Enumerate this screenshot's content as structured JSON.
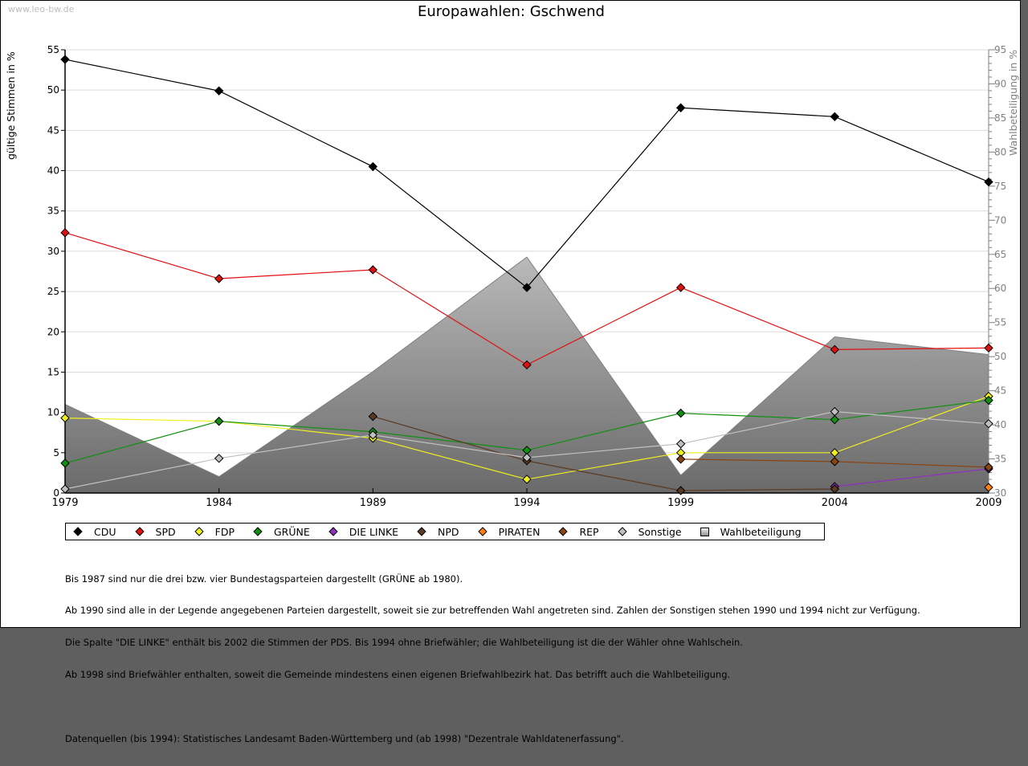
{
  "watermark": "www.leo-bw.de",
  "chart_data": {
    "type": "line",
    "title": "Europawahlen: Gschwend",
    "xlabel": "",
    "ylabel": "gültige Stimmen in %",
    "ylabel_right": "Wahlbeteiligung in %",
    "x": [
      1979,
      1984,
      1989,
      1994,
      1999,
      2004,
      2009
    ],
    "x_tick_labels": [
      "1979",
      "1984",
      "1989",
      "1994",
      "1999",
      "2004",
      "2009"
    ],
    "ylim": [
      0,
      55
    ],
    "y_ticks": [
      0,
      5,
      10,
      15,
      20,
      25,
      30,
      35,
      40,
      45,
      50,
      55
    ],
    "ylim_right": [
      30,
      95
    ],
    "y_ticks_right": [
      30,
      35,
      40,
      45,
      50,
      55,
      60,
      65,
      70,
      75,
      80,
      85,
      90,
      95
    ],
    "grid": true,
    "legend_position": "bottom",
    "series": [
      {
        "name": "CDU",
        "color": "#000000",
        "values": [
          53.8,
          49.9,
          40.5,
          25.5,
          47.8,
          46.7,
          38.6
        ]
      },
      {
        "name": "SPD",
        "color": "#e01010",
        "values": [
          32.3,
          26.6,
          27.7,
          15.9,
          25.5,
          17.8,
          18.0
        ]
      },
      {
        "name": "FDP",
        "color": "#f0f020",
        "values": [
          9.3,
          8.9,
          6.8,
          1.7,
          5.0,
          5.0,
          12.0
        ]
      },
      {
        "name": "GRÜNE",
        "color": "#109010",
        "values": [
          3.7,
          8.9,
          7.6,
          5.3,
          9.9,
          9.1,
          11.5
        ]
      },
      {
        "name": "DIE LINKE",
        "color": "#9030c0",
        "values": [
          null,
          null,
          null,
          null,
          null,
          0.8,
          3.0
        ]
      },
      {
        "name": "NPD",
        "color": "#5a3a22",
        "values": [
          null,
          null,
          9.5,
          4.0,
          0.3,
          0.5,
          null
        ]
      },
      {
        "name": "PIRATEN",
        "color": "#ff8010",
        "values": [
          null,
          null,
          null,
          null,
          null,
          null,
          0.7
        ]
      },
      {
        "name": "REP",
        "color": "#8a4510",
        "values": [
          null,
          null,
          null,
          null,
          4.2,
          3.9,
          3.2
        ]
      },
      {
        "name": "Sonstige",
        "color": "#c0c0c0",
        "values": [
          0.5,
          4.3,
          7.2,
          4.4,
          6.1,
          10.1,
          8.6
        ]
      },
      {
        "name": "Wahlbeteiligung",
        "color": "#a0a0a0",
        "type": "area",
        "axis": "right",
        "values": [
          43.0,
          32.4,
          47.8,
          64.6,
          32.6,
          52.9,
          50.3
        ]
      }
    ]
  },
  "notes": [
    "Bis 1987 sind nur die drei bzw. vier Bundestagsparteien dargestellt (GRÜNE ab 1980).",
    "Ab 1990 sind alle in der Legende angegebenen Parteien dargestellt, soweit sie zur betreffenden Wahl angetreten sind. Zahlen der Sonstigen stehen 1990 und 1994 nicht zur Verfügung.",
    "Die Spalte \"DIE LINKE\" enthält bis 2002 die Stimmen der PDS. Bis 1994 ohne Briefwähler; die Wahlbeteiligung ist die der Wähler ohne Wahlschein.",
    "Ab 1998 sind Briefwähler enthalten, soweit die Gemeinde mindestens einen eigenen Briefwahlbezirk hat. Das betrifft auch die Wahlbeteiligung.",
    "",
    "Datenquellen (bis 1994): Statistisches Landesamt Baden-Württemberg und (ab 1998) \"Dezentrale Wahldatenerfassung\"."
  ]
}
